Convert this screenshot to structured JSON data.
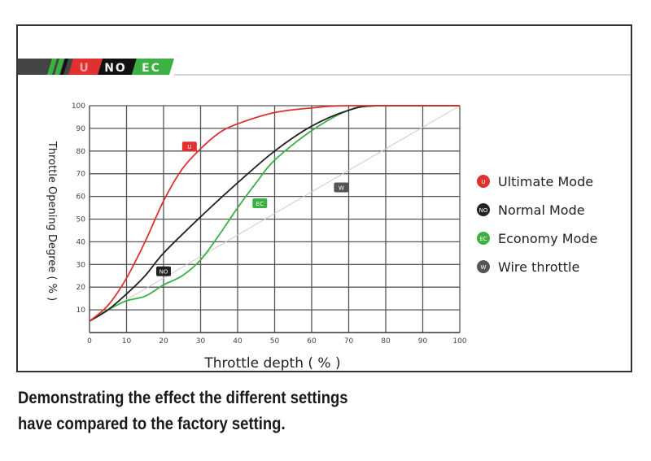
{
  "logo": {
    "segments": [
      "U",
      "NO",
      "EC"
    ]
  },
  "chart_data": {
    "type": "line",
    "title": "",
    "xlabel": "Throttle depth ( % )",
    "ylabel": "Throttle Opening Degree ( % )",
    "xlim": [
      0,
      100
    ],
    "ylim": [
      0,
      100
    ],
    "xticks": [
      0,
      10,
      20,
      30,
      40,
      50,
      60,
      70,
      80,
      90,
      100
    ],
    "yticks": [
      10,
      20,
      30,
      40,
      50,
      60,
      70,
      80,
      90,
      100
    ],
    "grid": true,
    "legend_position": "right",
    "series": [
      {
        "name": "Ultimate Mode",
        "badge": "U",
        "color": "#e03030",
        "marker_at": [
          27,
          82
        ],
        "points": [
          [
            0,
            5
          ],
          [
            5,
            12
          ],
          [
            10,
            24
          ],
          [
            15,
            40
          ],
          [
            20,
            58
          ],
          [
            25,
            72
          ],
          [
            30,
            81
          ],
          [
            35,
            88
          ],
          [
            40,
            92
          ],
          [
            50,
            97
          ],
          [
            60,
            99
          ],
          [
            70,
            100
          ],
          [
            100,
            100
          ]
        ]
      },
      {
        "name": "Normal Mode",
        "badge": "NO",
        "color": "#222222",
        "marker_at": [
          20,
          27
        ],
        "points": [
          [
            0,
            5
          ],
          [
            5,
            10
          ],
          [
            10,
            17
          ],
          [
            15,
            25
          ],
          [
            20,
            35
          ],
          [
            30,
            51
          ],
          [
            40,
            66
          ],
          [
            50,
            80
          ],
          [
            60,
            91
          ],
          [
            70,
            98
          ],
          [
            78,
            100
          ],
          [
            100,
            100
          ]
        ]
      },
      {
        "name": "Economy Mode",
        "badge": "EC",
        "color": "#3cb043",
        "marker_at": [
          46,
          57
        ],
        "points": [
          [
            0,
            5
          ],
          [
            5,
            10
          ],
          [
            10,
            14
          ],
          [
            15,
            16
          ],
          [
            20,
            21
          ],
          [
            25,
            25
          ],
          [
            30,
            32
          ],
          [
            35,
            43
          ],
          [
            40,
            55
          ],
          [
            45,
            66
          ],
          [
            50,
            76
          ],
          [
            60,
            89
          ],
          [
            70,
            98
          ],
          [
            78,
            100
          ],
          [
            100,
            100
          ]
        ]
      },
      {
        "name": "Wire throttle",
        "badge": "W",
        "color": "#cccccc",
        "marker_color": "#555555",
        "marker_at": [
          68,
          64
        ],
        "points": [
          [
            0,
            5
          ],
          [
            100,
            100
          ]
        ]
      }
    ]
  },
  "caption": {
    "line1": "Demonstrating the effect the different settings",
    "line2": "have compared to the factory setting."
  }
}
